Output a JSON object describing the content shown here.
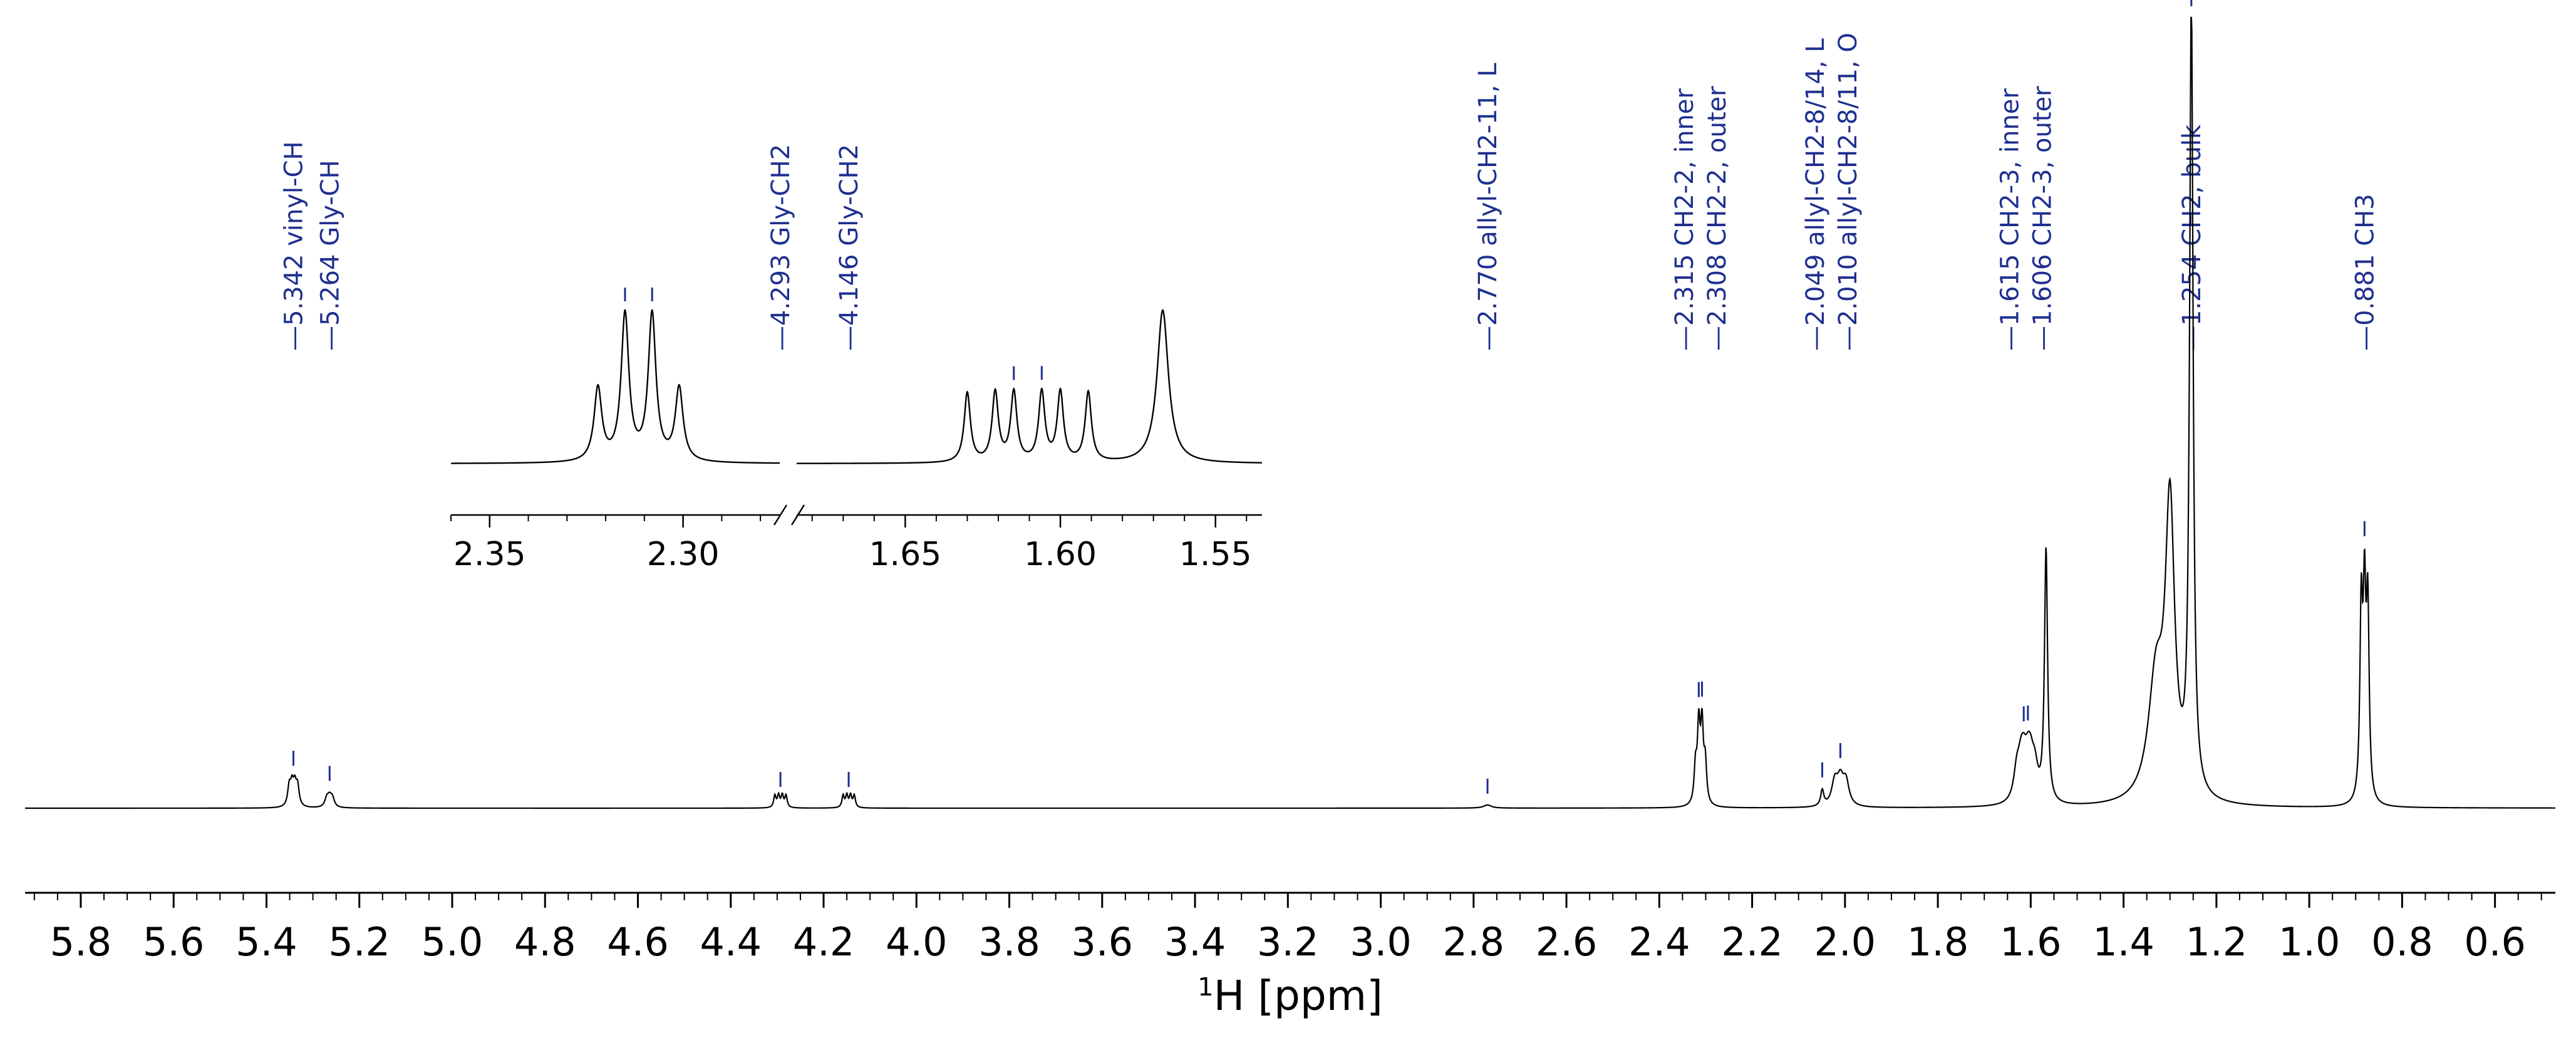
{
  "chart_data": {
    "type": "line",
    "title": "",
    "xlabel_sup": "1",
    "xlabel_main": "H [ppm]",
    "ylabel": "",
    "x_reversed": true,
    "xlim": [
      5.92,
      0.47
    ],
    "x_ticks": [
      5.8,
      5.6,
      5.4,
      5.2,
      5.0,
      4.8,
      4.6,
      4.4,
      4.2,
      4.0,
      3.8,
      3.6,
      3.4,
      3.2,
      3.0,
      2.8,
      2.6,
      2.4,
      2.2,
      2.0,
      1.8,
      1.6,
      1.4,
      1.2,
      1.0,
      0.8,
      0.6
    ],
    "x_tick_labels": [
      "5.8",
      "5.6",
      "5.4",
      "5.2",
      "5.0",
      "4.8",
      "4.6",
      "4.4",
      "4.2",
      "4.0",
      "3.8",
      "3.6",
      "3.4",
      "3.2",
      "3.0",
      "2.8",
      "2.6",
      "2.4",
      "2.2",
      "2.0",
      "1.8",
      "1.6",
      "1.4",
      "1.2",
      "1.0",
      "0.8",
      "0.6"
    ],
    "line_color": "#000000",
    "annotation_color": "#1f2f8f",
    "peaks": [
      {
        "ppm": 5.342,
        "label": "5.342 vinyl-CH",
        "height": 0.065,
        "width": 0.004,
        "mult": [
          -0.009,
          -0.003,
          0.003,
          0.009
        ]
      },
      {
        "ppm": 5.264,
        "label": "5.264 Gly-CH",
        "height": 0.022,
        "width": 0.005,
        "mult": [
          -0.006,
          0,
          0.006
        ]
      },
      {
        "ppm": 4.293,
        "label": "4.293 Gly-CH2",
        "height": 0.04,
        "width": 0.003,
        "mult": [
          -0.012,
          -0.004,
          0.004,
          0.012
        ]
      },
      {
        "ppm": 4.146,
        "label": "4.146 Gly-CH2",
        "height": 0.04,
        "width": 0.003,
        "mult": [
          -0.012,
          -0.004,
          0.004,
          0.012
        ]
      },
      {
        "ppm": 2.77,
        "label": "2.770 allyl-CH2-11, L",
        "height": 0.004,
        "width": 0.01,
        "mult": [
          0
        ]
      },
      {
        "ppm": 2.315,
        "label": "2.315 CH2-2, inner",
        "height": 0.09,
        "width": 0.0035,
        "mult": [
          -0.007,
          0,
          0.007
        ]
      },
      {
        "ppm": 2.308,
        "label": "2.308 CH2-2, outer",
        "height": 0.1,
        "width": 0.0035,
        "mult": [
          -0.007,
          0,
          0.007
        ]
      },
      {
        "ppm": 2.049,
        "label": "2.049 allyl-CH2-8/14, L",
        "height": 0.02,
        "width": 0.004,
        "mult": [
          0
        ]
      },
      {
        "ppm": 2.01,
        "label": "2.010 allyl-CH2-8/11, O",
        "height": 0.06,
        "width": 0.008,
        "mult": [
          -0.012,
          0,
          0.012
        ]
      },
      {
        "ppm": 1.615,
        "label": "1.615 CH2-3, inner",
        "height": 0.07,
        "width": 0.008,
        "mult": [
          -0.015,
          0,
          0.015
        ]
      },
      {
        "ppm": 1.606,
        "label": "1.606 CH2-3, outer",
        "height": 0.07,
        "width": 0.008,
        "mult": [
          -0.015,
          0,
          0.015
        ]
      },
      {
        "ppm": 1.254,
        "label": "1.254 CH2, bulk",
        "height": 1.0,
        "width": 0.0045,
        "mult": [
          0
        ]
      },
      {
        "ppm": 0.881,
        "label": "0.881 CH3",
        "height": 0.47,
        "width": 0.0035,
        "mult": [
          -0.007,
          0,
          0.007
        ]
      }
    ],
    "unlabeled_peaks": [
      {
        "ppm": 1.567,
        "height": 0.32,
        "width": 0.004
      },
      {
        "ppm": 1.3,
        "height": 0.36,
        "width": 0.012
      },
      {
        "ppm": 1.33,
        "height": 0.15,
        "width": 0.02
      }
    ],
    "inset": {
      "left_panel": {
        "xlim": [
          2.36,
          2.275
        ],
        "x_ticks": [
          2.35,
          2.3
        ],
        "x_tick_labels": [
          "2.35",
          "2.30"
        ]
      },
      "right_panel": {
        "xlim": [
          1.685,
          1.535
        ],
        "x_ticks": [
          1.65,
          1.6,
          1.55
        ],
        "x_tick_labels": [
          "1.65",
          "1.60",
          "1.55"
        ]
      }
    }
  }
}
